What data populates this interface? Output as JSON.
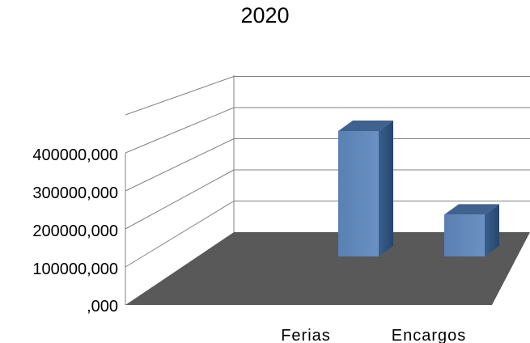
{
  "chart_data": {
    "type": "bar",
    "title": "2020",
    "categories": [
      "Ferias",
      "Encargos"
    ],
    "series": [
      {
        "values": [
          420000,
          140000
        ]
      }
    ],
    "ylim": [
      0,
      400000
    ],
    "y_ticks": [
      0,
      100000,
      200000,
      300000,
      400000
    ],
    "y_tick_labels": [
      ",000",
      "100000,000",
      "200000,000",
      "300000,000",
      "400000,000"
    ],
    "grid": true,
    "three_d": true,
    "colors": {
      "bar_front": "#5f86b9",
      "bar_top": "#3f628f",
      "bar_side": "#2f5685",
      "floor": "#595959",
      "grid": "#808080"
    }
  }
}
